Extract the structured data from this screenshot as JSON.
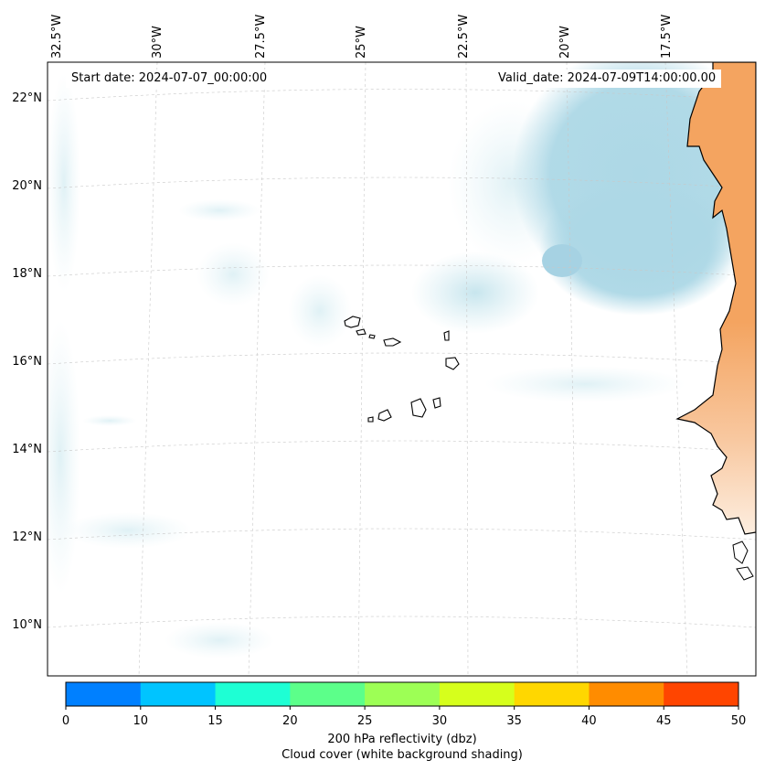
{
  "header": {
    "start_date": "Start date: 2024-07-07_00:00:00",
    "valid_date": "Valid_date: 2024-07-09T14:00:00.00"
  },
  "map": {
    "longitude_labels": [
      "32.5°W",
      "30°W",
      "27.5°W",
      "25°W",
      "22.5°W",
      "20°W",
      "17.5°W"
    ],
    "latitude_labels": [
      "22°N",
      "20°N",
      "18°N",
      "16°N",
      "14°N",
      "12°N",
      "10°N"
    ],
    "region": "Cape Verde Islands and West African coast",
    "land_color": "#f4a460",
    "cloud_color": "#add8e6"
  },
  "colorbar": {
    "ticks": [
      "0",
      "10",
      "15",
      "20",
      "25",
      "30",
      "35",
      "40",
      "45",
      "50"
    ],
    "colors": [
      "#0080ff",
      "#00c4ff",
      "#1effd4",
      "#5cff8a",
      "#9dff55",
      "#d6ff1c",
      "#ffd700",
      "#ff8c00",
      "#ff4500"
    ],
    "label": "200 hPa reflectivity (dbz)",
    "sublabel": "Cloud cover (white background shading)"
  }
}
